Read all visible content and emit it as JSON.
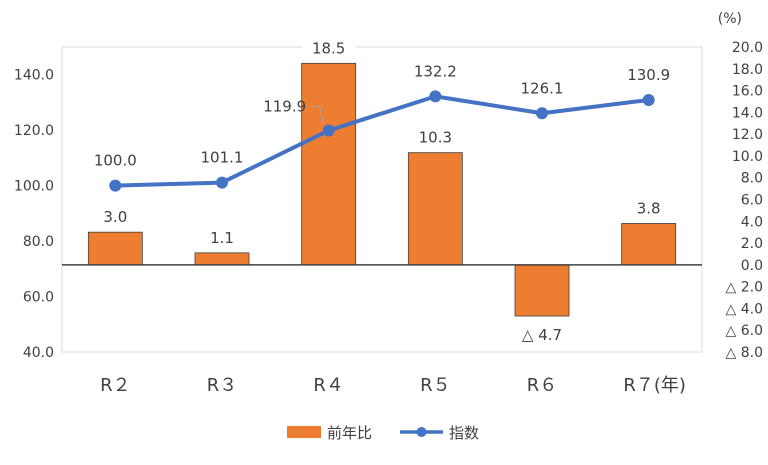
{
  "chart_data": {
    "type": "bar",
    "categories": [
      "R２",
      "R３",
      "R４",
      "R５",
      "R６",
      "R７(年)"
    ],
    "series": [
      {
        "name": "前年比",
        "kind": "bar",
        "axis": "right",
        "values": [
          3.0,
          1.1,
          18.5,
          10.3,
          -4.7,
          3.8
        ],
        "labels": [
          "3.0",
          "1.1",
          "18.5",
          "10.3",
          "△ 4.7",
          "3.8"
        ],
        "color": "#ED7D31"
      },
      {
        "name": "指数",
        "kind": "line",
        "axis": "left",
        "values": [
          100.0,
          101.1,
          119.9,
          132.2,
          126.1,
          130.9
        ],
        "labels": [
          "100.0",
          "101.1",
          "119.9",
          "132.2",
          "126.1",
          "130.9"
        ],
        "color": "#4472C4"
      }
    ],
    "left_axis": {
      "ylim": [
        40,
        150
      ],
      "ticks": [
        40,
        60,
        80,
        100,
        120,
        140
      ],
      "tick_labels": [
        "40.0",
        "60.0",
        "80.0",
        "100.0",
        "120.0",
        "140.0"
      ]
    },
    "right_axis": {
      "unit": "(%)",
      "ylim": [
        -8,
        20
      ],
      "ticks": [
        20,
        18,
        16,
        14,
        12,
        10,
        8,
        6,
        4,
        2,
        0,
        -2,
        -4,
        -6,
        -8
      ],
      "tick_labels": [
        "20.0",
        "18.0",
        "16.0",
        "14.0",
        "12.0",
        "10.0",
        "8.0",
        "6.0",
        "4.0",
        "2.0",
        "0.0",
        "△ 2.0",
        "△ 4.0",
        "△ 6.0",
        "△ 8.0"
      ]
    },
    "grid": false,
    "legend": "bottom"
  }
}
